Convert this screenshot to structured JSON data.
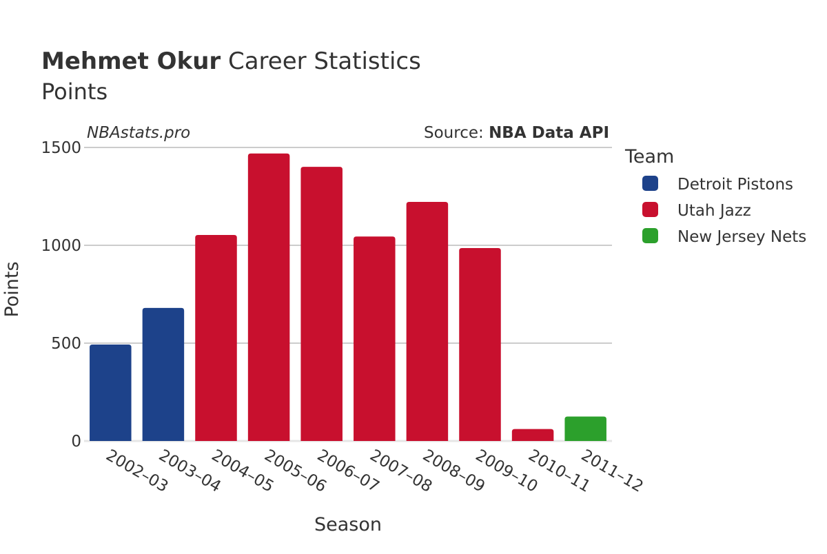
{
  "title": {
    "name": "Mehmet Okur",
    "rest": " Career Statistics",
    "subtitle": "Points"
  },
  "watermark": "NBAstats.pro",
  "source": {
    "prefix": "Source: ",
    "name": "NBA Data API"
  },
  "legend": {
    "title": "Team"
  },
  "colors": {
    "Detroit Pistons": "#1d428a",
    "Utah Jazz": "#c8102e",
    "New Jersey Nets": "#2ca02c",
    "grid": "#bbbbbb",
    "text": "#333333"
  },
  "chart_data": {
    "type": "bar",
    "xlabel": "Season",
    "ylabel": "Points",
    "ylim": [
      0,
      1500
    ],
    "yticks": [
      0,
      500,
      1000,
      1500
    ],
    "grid": true,
    "legend_position": "right",
    "categories": [
      "2002–03",
      "2003–04",
      "2004–05",
      "2005–06",
      "2006–07",
      "2007–08",
      "2008–09",
      "2009–10",
      "2010–11",
      "2011–12"
    ],
    "teams": [
      "Detroit Pistons",
      "Detroit Pistons",
      "Utah Jazz",
      "Utah Jazz",
      "Utah Jazz",
      "Utah Jazz",
      "Utah Jazz",
      "Utah Jazz",
      "Utah Jazz",
      "New Jersey Nets"
    ],
    "values": [
      493,
      680,
      1053,
      1469,
      1401,
      1045,
      1222,
      986,
      61,
      125
    ],
    "series": [
      {
        "name": "Detroit Pistons"
      },
      {
        "name": "Utah Jazz"
      },
      {
        "name": "New Jersey Nets"
      }
    ]
  }
}
